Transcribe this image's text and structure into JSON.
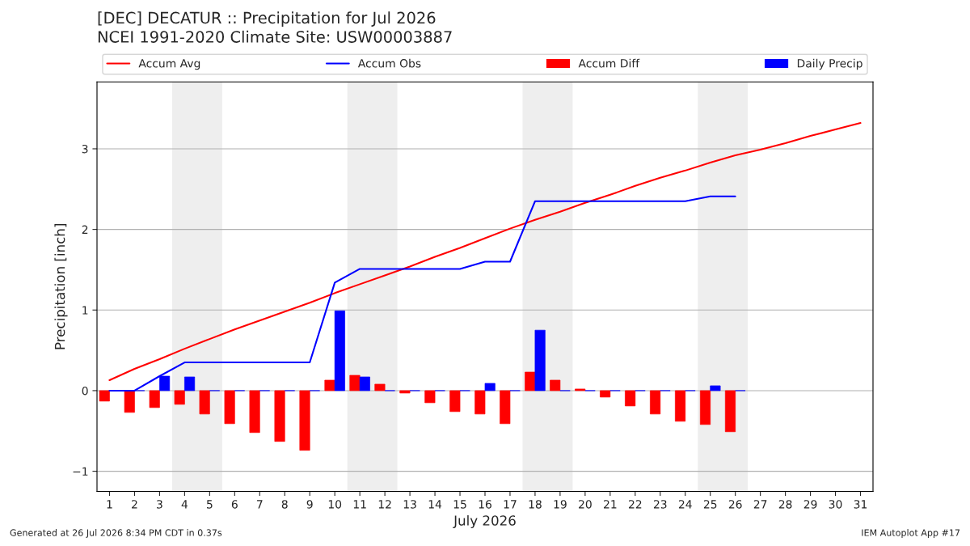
{
  "chart_data": {
    "type": "bar",
    "title": "[DEC] DECATUR :: Precipitation for Jul 2026",
    "subtitle": "NCEI 1991-2020 Climate Site: USW00003887",
    "xlabel": "July 2026",
    "ylabel": "Precipitation [inch]",
    "x": [
      1,
      2,
      3,
      4,
      5,
      6,
      7,
      8,
      9,
      10,
      11,
      12,
      13,
      14,
      15,
      16,
      17,
      18,
      19,
      20,
      21,
      22,
      23,
      24,
      25,
      26,
      27,
      28,
      29,
      30,
      31
    ],
    "series": [
      {
        "name": "Accum Avg",
        "type": "line",
        "color": "#ff0000",
        "values": [
          0.13,
          0.27,
          0.39,
          0.52,
          0.64,
          0.76,
          0.87,
          0.98,
          1.09,
          1.21,
          1.32,
          1.43,
          1.54,
          1.66,
          1.77,
          1.89,
          2.01,
          2.12,
          2.22,
          2.33,
          2.43,
          2.54,
          2.64,
          2.73,
          2.83,
          2.92,
          2.99,
          3.07,
          3.16,
          3.24,
          3.32
        ]
      },
      {
        "name": "Accum Obs",
        "type": "line",
        "color": "#0000ff",
        "values": [
          0,
          0,
          0.18,
          0.35,
          0.35,
          0.35,
          0.35,
          0.35,
          0.35,
          1.34,
          1.51,
          1.51,
          1.51,
          1.51,
          1.51,
          1.6,
          1.6,
          2.35,
          2.35,
          2.35,
          2.35,
          2.35,
          2.35,
          2.35,
          2.41,
          2.41,
          null,
          null,
          null,
          null,
          null
        ]
      },
      {
        "name": "Accum Diff",
        "color": "#ff0000",
        "values": [
          -0.13,
          -0.27,
          -0.21,
          -0.17,
          -0.29,
          -0.41,
          -0.52,
          -0.63,
          -0.74,
          0.13,
          0.19,
          0.08,
          -0.03,
          -0.15,
          -0.26,
          -0.29,
          -0.41,
          0.23,
          0.13,
          0.02,
          -0.08,
          -0.19,
          -0.29,
          -0.38,
          -0.42,
          -0.51,
          null,
          null,
          null,
          null,
          null
        ]
      },
      {
        "name": "Daily Precip",
        "color": "#0000ff",
        "values": [
          0,
          0,
          0.18,
          0.17,
          0,
          0,
          0,
          0,
          0,
          0.99,
          0.17,
          0,
          0,
          0,
          0,
          0.09,
          0,
          0.75,
          0,
          0,
          0,
          0,
          0,
          0,
          0.06,
          0,
          null,
          null,
          null,
          null,
          null
        ]
      }
    ],
    "bands": [
      {
        "axis": "x",
        "from": 3.5,
        "to": 5.5,
        "color": "#eeeeee"
      },
      {
        "axis": "x",
        "from": 10.5,
        "to": 12.5,
        "color": "#eeeeee"
      },
      {
        "axis": "x",
        "from": 17.5,
        "to": 19.5,
        "color": "#eeeeee"
      },
      {
        "axis": "x",
        "from": 24.5,
        "to": 26.5,
        "color": "#eeeeee"
      }
    ],
    "xlim": [
      0.5,
      31.5
    ],
    "xticks": [
      1,
      2,
      3,
      4,
      5,
      6,
      7,
      8,
      9,
      10,
      11,
      12,
      13,
      14,
      15,
      16,
      17,
      18,
      19,
      20,
      21,
      22,
      23,
      24,
      25,
      26,
      27,
      28,
      29,
      30,
      31
    ],
    "ylim": [
      -1.25,
      3.83
    ],
    "yticks": [
      {
        "value": -1,
        "label": "−1"
      },
      0,
      1,
      2,
      3
    ],
    "grid": "y",
    "legend": "top",
    "annotations": [
      "Generated at 26 Jul 2026 8:34 PM CDT in 0.37s",
      "IEM Autoplot App #17"
    ]
  }
}
